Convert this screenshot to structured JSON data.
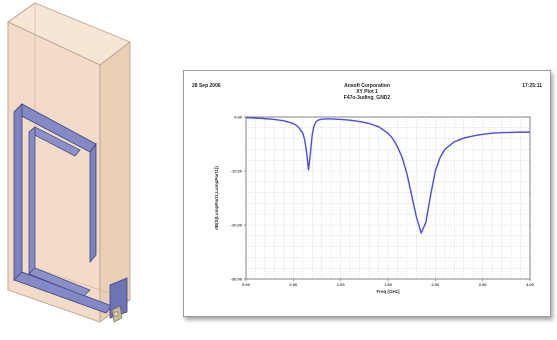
{
  "plot": {
    "date": "28 Sep 2006",
    "company": "Ansoft Corporation",
    "plot_name": "XY Plot 1",
    "design_name": "F47o-3uding_GND2",
    "time": "17:25:11"
  },
  "colors": {
    "curve": "#4a4de0",
    "grid": "#bdbdbd",
    "model_fill": "#f3dcc6",
    "model_edge": "#b89e86",
    "trace_fill": "#8289c4",
    "trace_edge": "#3f4280"
  },
  "chart_data": {
    "type": "line",
    "title": "",
    "xlabel": "Freq [GHz]",
    "ylabel": "dB(S(LumpPort1,LumpPort1))",
    "xlim": [
      0.0,
      3.0
    ],
    "ylim": [
      -30.0,
      0.0
    ],
    "x_ticks": [
      0.0,
      0.5,
      1.0,
      1.5,
      2.0,
      2.5,
      3.0
    ],
    "x_tick_labels": [
      "0.00",
      "0.50",
      "1.00",
      "1.50",
      "2.00",
      "2.50",
      "3.00"
    ],
    "y_ticks": [
      0.0,
      -10.0,
      -20.0,
      -30.0
    ],
    "y_tick_labels": [
      "0.00",
      "-10.00",
      "-20.00",
      "-30.00"
    ],
    "grid": true,
    "series": [
      {
        "x": [
          0.0,
          0.1,
          0.2,
          0.3,
          0.4,
          0.5,
          0.55,
          0.6,
          0.62,
          0.64,
          0.66,
          0.68,
          0.7,
          0.72,
          0.74,
          0.76,
          0.78,
          0.8,
          0.85,
          0.9,
          1.0,
          1.1,
          1.2,
          1.3,
          1.4,
          1.5,
          1.55,
          1.6,
          1.65,
          1.7,
          1.75,
          1.8,
          1.85,
          1.9,
          1.95,
          2.0,
          2.05,
          2.1,
          2.2,
          2.3,
          2.4,
          2.5,
          2.6,
          2.7,
          2.8,
          2.9,
          3.0
        ],
        "y": [
          -0.1,
          -0.2,
          -0.3,
          -0.45,
          -0.7,
          -1.2,
          -1.8,
          -3.0,
          -4.2,
          -6.5,
          -9.8,
          -6.8,
          -3.2,
          -1.6,
          -0.9,
          -0.6,
          -0.5,
          -0.4,
          -0.35,
          -0.35,
          -0.45,
          -0.6,
          -0.85,
          -1.2,
          -1.8,
          -3.0,
          -4.0,
          -5.5,
          -7.5,
          -10.5,
          -14.5,
          -18.5,
          -21.5,
          -19.5,
          -14.5,
          -10.0,
          -7.5,
          -6.0,
          -4.6,
          -3.9,
          -3.5,
          -3.2,
          -3.0,
          -2.9,
          -2.85,
          -2.8,
          -2.8
        ]
      }
    ]
  }
}
